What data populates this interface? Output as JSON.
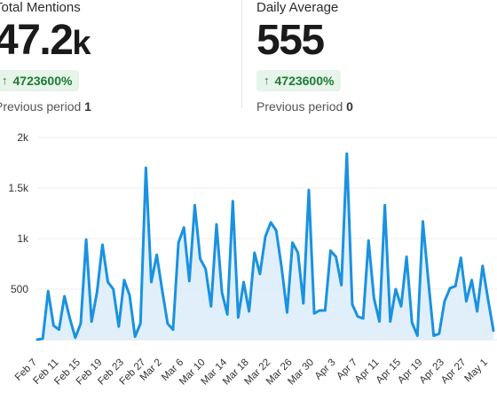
{
  "stats": {
    "total": {
      "label": "Total Mentions",
      "value": "47.2",
      "unit": "k",
      "change": "4723600%",
      "prev_label": "Previous period",
      "prev_value": "1"
    },
    "daily": {
      "label": "Daily Average",
      "value": "555",
      "unit": "",
      "change": "4723600%",
      "prev_label": "Previous period",
      "prev_value": "0"
    }
  },
  "colors": {
    "line": "#1992e0",
    "area": "#dcecfa",
    "badge_bg": "#e6f4ea",
    "badge_text": "#1e7b34"
  },
  "icons": {
    "change_arrow": "arrow-up-icon"
  },
  "chart_data": {
    "type": "area",
    "title": "",
    "xlabel": "",
    "ylabel": "",
    "ylim": [
      0,
      2000
    ],
    "y_ticks": [
      500,
      1000,
      1500,
      2000
    ],
    "y_tick_labels": [
      "500",
      "1k",
      "1.5k",
      "2k"
    ],
    "grid": true,
    "x_ticks": [
      "Feb 7",
      "Feb 11",
      "Feb 15",
      "Feb 19",
      "Feb 23",
      "Feb 27",
      "Mar 2",
      "Mar 6",
      "Mar 10",
      "Mar 14",
      "Mar 18",
      "Mar 22",
      "Mar 26",
      "Mar 30",
      "Apr 3",
      "Apr 7",
      "Apr 11",
      "Apr 15",
      "Apr 19",
      "Apr 23",
      "Apr 27",
      "May 1"
    ],
    "x": [
      "Feb 7",
      "Feb 8",
      "Feb 9",
      "Feb 10",
      "Feb 11",
      "Feb 12",
      "Feb 13",
      "Feb 14",
      "Feb 15",
      "Feb 16",
      "Feb 17",
      "Feb 18",
      "Feb 19",
      "Feb 20",
      "Feb 21",
      "Feb 22",
      "Feb 23",
      "Feb 24",
      "Feb 25",
      "Feb 26",
      "Feb 27",
      "Feb 28",
      "Mar 1",
      "Mar 2",
      "Mar 3",
      "Mar 4",
      "Mar 5",
      "Mar 6",
      "Mar 7",
      "Mar 8",
      "Mar 9",
      "Mar 10",
      "Mar 11",
      "Mar 12",
      "Mar 13",
      "Mar 14",
      "Mar 15",
      "Mar 16",
      "Mar 17",
      "Mar 18",
      "Mar 19",
      "Mar 20",
      "Mar 21",
      "Mar 22",
      "Mar 23",
      "Mar 24",
      "Mar 25",
      "Mar 26",
      "Mar 27",
      "Mar 28",
      "Mar 29",
      "Mar 30",
      "Mar 31",
      "Apr 1",
      "Apr 2",
      "Apr 3",
      "Apr 4",
      "Apr 5",
      "Apr 6",
      "Apr 7",
      "Apr 8",
      "Apr 9",
      "Apr 10",
      "Apr 11",
      "Apr 12",
      "Apr 13",
      "Apr 14",
      "Apr 15",
      "Apr 16",
      "Apr 17",
      "Apr 18",
      "Apr 19",
      "Apr 20",
      "Apr 21",
      "Apr 22",
      "Apr 23",
      "Apr 24",
      "Apr 25",
      "Apr 26",
      "Apr 27",
      "Apr 28",
      "Apr 29",
      "Apr 30",
      "May 1",
      "May 2"
    ],
    "series": [
      {
        "values": [
          1,
          10,
          480,
          140,
          100,
          430,
          210,
          20,
          160,
          990,
          180,
          470,
          940,
          570,
          500,
          130,
          590,
          440,
          30,
          160,
          1700,
          570,
          840,
          490,
          160,
          100,
          960,
          1110,
          580,
          1330,
          800,
          700,
          330,
          1140,
          470,
          250,
          1370,
          220,
          570,
          280,
          860,
          650,
          1020,
          1160,
          1080,
          710,
          270,
          960,
          860,
          360,
          1480,
          260,
          290,
          290,
          880,
          820,
          540,
          1840,
          350,
          230,
          210,
          980,
          410,
          180,
          1330,
          180,
          500,
          330,
          820,
          170,
          40,
          1170,
          590,
          40,
          60,
          380,
          510,
          530,
          810,
          380,
          590,
          280,
          730,
          400,
          90
        ]
      }
    ]
  }
}
